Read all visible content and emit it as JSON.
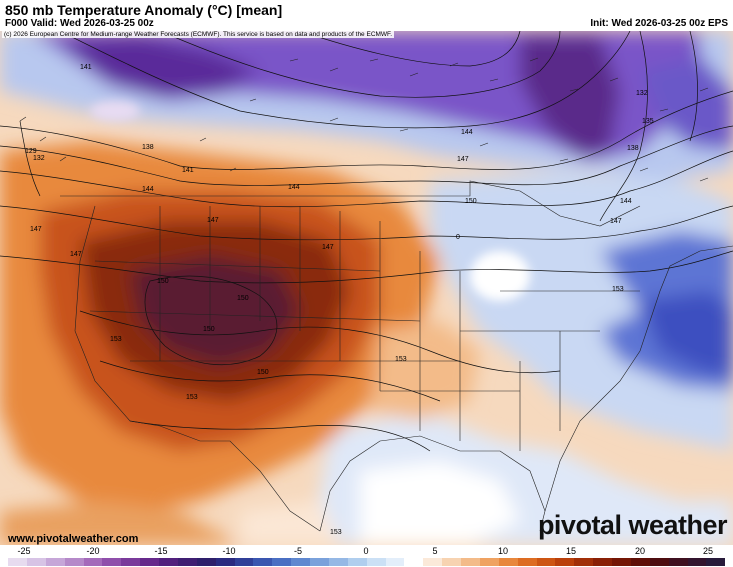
{
  "header": {
    "title": "850 mb Temperature Anomaly (°C) [mean]",
    "valid": "F000 Valid: Wed 2026-03-25 00z",
    "init": "Init: Wed 2026-03-25 00z EPS"
  },
  "credit": "(c) 2026 European Centre for Medium-range Weather Forecasts (ECMWF). This service is based on data and products of the ECMWF.",
  "footer": {
    "site": "www.pivotalweather.com",
    "brand": "pivotal weather"
  },
  "colorbar": {
    "ticks": [
      "-25",
      "-20",
      "-15",
      "-10",
      "-5",
      "0",
      "5",
      "10",
      "15",
      "20",
      "25"
    ],
    "colors": [
      "#e7dbef",
      "#d7c3e5",
      "#c6a6d8",
      "#b589c9",
      "#a46aba",
      "#8f4fab",
      "#7a3a9b",
      "#66298b",
      "#52207d",
      "#3f1e72",
      "#2e1f6b",
      "#2a2a80",
      "#303f98",
      "#3a56b0",
      "#4a6fc3",
      "#5f88d0",
      "#7aa1db",
      "#95b8e5",
      "#b0ceee",
      "#cbe0f5",
      "#e3eefa",
      "#ffffff",
      "#fbe9d9",
      "#f7d3b1",
      "#f3bb89",
      "#efa261",
      "#e8873c",
      "#dd6c22",
      "#cd5513",
      "#ba400b",
      "#a12f08",
      "#892006",
      "#741605",
      "#5f0f07",
      "#4d0d10",
      "#3f1020",
      "#33142e",
      "#281a3a"
    ]
  },
  "map": {
    "variable": "850 mb temperature anomaly",
    "units": "°C",
    "contour_labels": [
      "141",
      "129",
      "132",
      "138",
      "141",
      "144",
      "147",
      "147",
      "147",
      "144",
      "147",
      "150",
      "0",
      "153",
      "150",
      "150",
      "150",
      "153",
      "147",
      "150",
      "153",
      "144",
      "138",
      "135",
      "132",
      "144",
      "147",
      "153",
      "153"
    ],
    "colors": {
      "deep_purple": "#4a1a6e",
      "purple": "#7c3ab0",
      "lavender": "#c9b8e8",
      "blue": "#3c4fc0",
      "light_blue": "#b9cdf0",
      "white": "#ffffff",
      "peach": "#f9dcc0",
      "orange": "#e98a3e",
      "dark_orange": "#c8531a",
      "brown": "#8a2a10",
      "maroon": "#4a1d3a"
    }
  }
}
